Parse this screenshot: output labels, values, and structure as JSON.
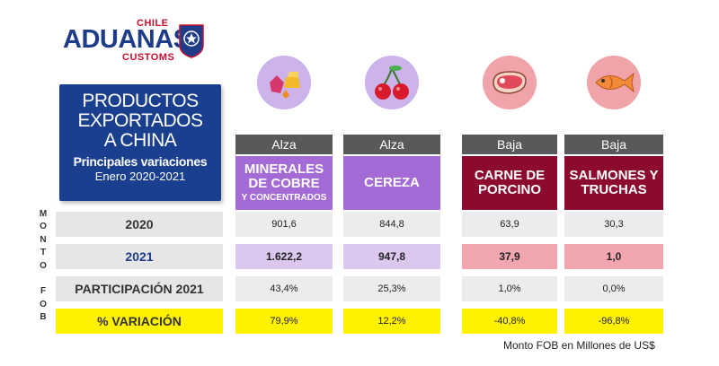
{
  "logo": {
    "chile": "CHILE",
    "aduanas": "ADUANAS",
    "customs": "CUSTOMS"
  },
  "title": {
    "main_line1": "PRODUCTOS",
    "main_line2": "EXPORTADOS",
    "main_line3": "A CHINA",
    "subtitle": "Principales variaciones",
    "period": "Enero 2020-2021"
  },
  "side_label": [
    "M",
    "O",
    "N",
    "T",
    "O",
    "",
    "F",
    "O",
    "B"
  ],
  "rows": {
    "y2020": "2020",
    "y2021": "2021",
    "share": "PARTICIPACIÓN 2021",
    "variation": "% VARIACIÓN"
  },
  "products": [
    {
      "trend": "Alza",
      "name_line1": "MINERALES",
      "name_line2": "DE COBRE",
      "name_sub": "Y CONCENTRADOS",
      "v2020": "901,6",
      "v2021": "1.622,2",
      "share": "43,4%",
      "variation": "79,9%",
      "icon": "minerals-icon",
      "color": "#a46ad6"
    },
    {
      "trend": "Alza",
      "name_line1": "CEREZA",
      "name_line2": "",
      "name_sub": "",
      "v2020": "844,8",
      "v2021": "947,8",
      "share": "25,3%",
      "variation": "12,2%",
      "icon": "cherry-icon",
      "color": "#a46ad6"
    },
    {
      "trend": "Baja",
      "name_line1": "CARNE DE",
      "name_line2": "PORCINO",
      "name_sub": "",
      "v2020": "63,9",
      "v2021": "37,9",
      "share": "1,0%",
      "variation": "-40,8%",
      "icon": "meat-icon",
      "color": "#8b0a2e"
    },
    {
      "trend": "Baja",
      "name_line1": "SALMONES Y",
      "name_line2": "TRUCHAS",
      "name_sub": "",
      "v2020": "30,3",
      "v2021": "1,0",
      "share": "0,0%",
      "variation": "-96,8%",
      "icon": "fish-icon",
      "color": "#8b0a2e"
    }
  ],
  "footnote": "Monto FOB en Millones de US$"
}
